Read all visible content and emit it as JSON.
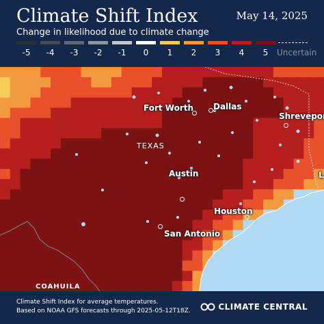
{
  "header": {
    "title": "Climate Shift Index",
    "date": "May 14, 2025",
    "subtitle": "Change in likelihood due to climate change"
  },
  "legend": {
    "items": [
      {
        "label": "-5",
        "color": "#2b2f37"
      },
      {
        "label": "-4",
        "color": "#454a53"
      },
      {
        "label": "-3",
        "color": "#636872"
      },
      {
        "label": "-2",
        "color": "#8f949d"
      },
      {
        "label": "-1",
        "color": "#c3c6cb"
      },
      {
        "label": "0",
        "color": "#ffffff"
      },
      {
        "label": "1",
        "color": "#f7cd57"
      },
      {
        "label": "2",
        "color": "#f39a3e"
      },
      {
        "label": "3",
        "color": "#e8512b"
      },
      {
        "label": "4",
        "color": "#b5201f"
      },
      {
        "label": "5",
        "color": "#7d1212"
      }
    ],
    "uncertain_label": "Uncertain",
    "uncertain_color": "#ffffff"
  },
  "map": {
    "water_color": "#aedbf3",
    "cities": {
      "fort_worth": "Fort Worth",
      "dallas": "Dallas",
      "shreveport": "Shreveport",
      "austin": "Austin",
      "houston": "Houston",
      "san_antonio": "San Antonio"
    },
    "state_label": "TEXAS",
    "region_label": "COAHUILA",
    "edge_label": "L"
  },
  "footer": {
    "line1": "Climate Shift Index for average temperatures.",
    "line2": "Based on NOAA GFS forecasts through 2025-05-12T18Z.",
    "brand": "CLIMATE CENTRAL"
  }
}
